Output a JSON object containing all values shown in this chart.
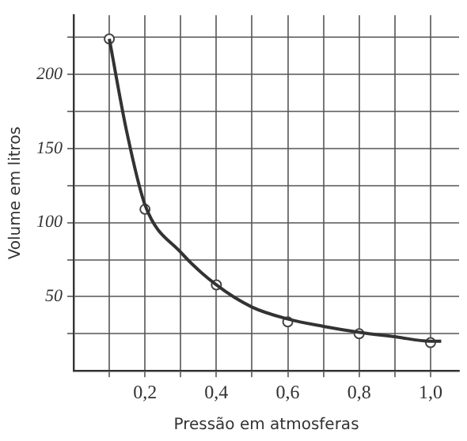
{
  "chart_data": {
    "type": "line",
    "xlabel": "Pressão em atmosferas",
    "ylabel": "Volume em litros",
    "xlim": [
      0,
      1.08
    ],
    "ylim": [
      0,
      240
    ],
    "xticks": [
      {
        "value": 0.1,
        "label": null
      },
      {
        "value": 0.2,
        "label": "0,2"
      },
      {
        "value": 0.3,
        "label": null
      },
      {
        "value": 0.4,
        "label": "0,4"
      },
      {
        "value": 0.5,
        "label": null
      },
      {
        "value": 0.6,
        "label": "0,6"
      },
      {
        "value": 0.7,
        "label": null
      },
      {
        "value": 0.8,
        "label": "0,8"
      },
      {
        "value": 0.9,
        "label": null
      },
      {
        "value": 1.0,
        "label": "1,0"
      }
    ],
    "yticks": [
      {
        "value": 25,
        "label": null
      },
      50,
      {
        "value": 75,
        "label": null
      },
      100,
      {
        "value": 125,
        "label": null
      },
      150,
      {
        "value": 175,
        "label": null
      },
      200,
      {
        "value": 225,
        "label": null
      }
    ],
    "grid": true,
    "legend": false,
    "series": [
      {
        "color": "#333333",
        "marker": "none",
        "line_style": "solid",
        "x": [
          0.1,
          0.15,
          0.2,
          0.3,
          0.4,
          0.5,
          0.6,
          0.7,
          0.8,
          0.9,
          1.0,
          1.03
        ],
        "values": [
          224,
          160,
          112,
          80,
          58,
          43,
          35,
          30,
          26,
          23,
          20,
          20
        ]
      },
      {
        "type": "scatter",
        "color": "#444444",
        "marker": "circle",
        "x": [
          0.1,
          0.2,
          0.4,
          0.6,
          0.8,
          1.0
        ],
        "values": [
          224,
          109,
          58,
          33,
          25,
          19
        ]
      }
    ]
  }
}
